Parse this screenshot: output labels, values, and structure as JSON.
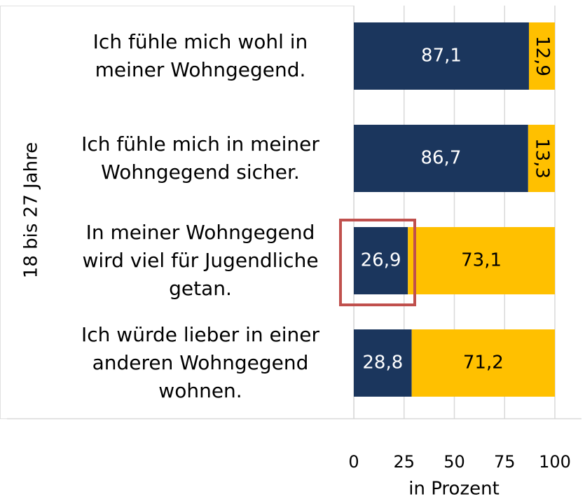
{
  "chart_data": {
    "type": "stacked_barh",
    "categories": [
      "Ich fühle mich wohl in meiner Wohngegend.",
      "Ich fühle mich in meiner Wohngegend sicher.",
      "In meiner Wohngegend wird viel für Jugendliche getan.",
      "Ich würde lieber in einer anderen Wohngegend wohnen."
    ],
    "group_label": "18 bis 27 Jahre",
    "series": [
      {
        "color": "#1b365d",
        "values": [
          87.1,
          86.7,
          26.9,
          28.8
        ],
        "value_labels": [
          "87,1",
          "86,7",
          "26,9",
          "28,8"
        ]
      },
      {
        "color": "#ffc000",
        "values": [
          12.9,
          13.3,
          73.1,
          71.2
        ],
        "value_labels": [
          "12,9",
          "13,3",
          "73,1",
          "71,2"
        ]
      }
    ],
    "xlim": [
      0,
      100
    ],
    "xticks": [
      0,
      25,
      50,
      75,
      100
    ],
    "grid": true,
    "xlabel": "in Prozent"
  }
}
